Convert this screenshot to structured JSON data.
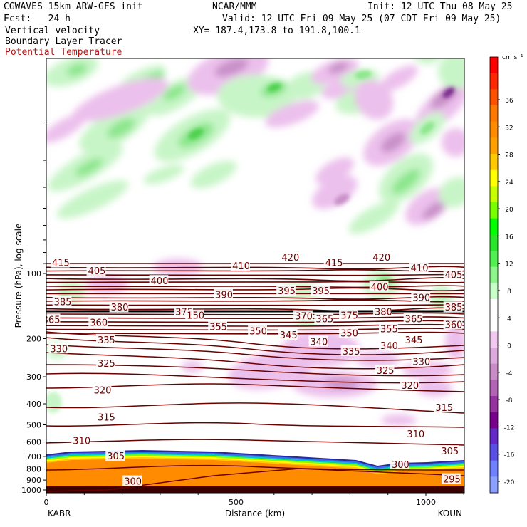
{
  "header": {
    "line1_left": "CGWAVES 15km ARW-GFS init",
    "line1_center": "NCAR/MMM",
    "line1_right": "Init: 12 UTC Thu 08 May 25",
    "line2_left": "Fcst:   24 h",
    "line2_right": "Valid: 12 UTC Fri 09 May 25 (07 CDT Fri 09 May 25)",
    "line3_left": "Vertical velocity",
    "line3_right": "XY= 187.4,173.8 to 191.8,100.1",
    "line4_left": "Boundary Layer Tracer",
    "line5_left": "Potential Temperature"
  },
  "colors": {
    "theta_contour": "#6b0000",
    "header_red": "#b01818",
    "tropopause_line": "#000000"
  },
  "chart_data": {
    "type": "cross-section",
    "xlabel": "Distance (km)",
    "ylabel": "Pressure (hPa), log scale",
    "xlim": [
      0,
      1110
    ],
    "ylim_hPa": [
      1050,
      10
    ],
    "x_ticks": [
      "0",
      "500",
      "1000"
    ],
    "y_ticks": [
      "100",
      "200",
      "300",
      "400",
      "500",
      "600",
      "700",
      "800",
      "900",
      "1000"
    ],
    "start_label": "KABR",
    "end_label": "KOUN",
    "colorbar": {
      "unit": "cm s⁻¹",
      "tick_labels": [
        "36",
        "32",
        "28",
        "24",
        "20",
        "16",
        "12",
        "8",
        "4",
        "0",
        "-4",
        "-8",
        "-12",
        "-16",
        "-20"
      ],
      "colors": [
        "#ff0000",
        "#ff2800",
        "#ff5000",
        "#ff7800",
        "#ff8c00",
        "#ffa000",
        "#ffc800",
        "#ffff00",
        "#c8ff00",
        "#78ff00",
        "#00ff00",
        "#28e628",
        "#50f050",
        "#8cf58c",
        "#c8ffc8",
        "#ffffff",
        "#ffffff",
        "#f0c8f0",
        "#dcaadc",
        "#c88cc8",
        "#b464b4",
        "#9632a0",
        "#78008c",
        "#6428c8",
        "#5a50e6",
        "#6e82ff",
        "#8ca0ff"
      ]
    },
    "theta_labels": [
      {
        "v": "415",
        "x": 15,
        "p": 89
      },
      {
        "v": "405",
        "x": 110,
        "p": 97
      },
      {
        "v": "400",
        "x": 275,
        "p": 108
      },
      {
        "v": "410",
        "x": 490,
        "p": 92
      },
      {
        "v": "420",
        "x": 620,
        "p": 84
      },
      {
        "v": "415",
        "x": 735,
        "p": 89
      },
      {
        "v": "420",
        "x": 860,
        "p": 84
      },
      {
        "v": "410",
        "x": 960,
        "p": 94
      },
      {
        "v": "405",
        "x": 1050,
        "p": 101
      },
      {
        "v": "385",
        "x": 20,
        "p": 135
      },
      {
        "v": "380",
        "x": 170,
        "p": 143
      },
      {
        "v": "375",
        "x": 340,
        "p": 150
      },
      {
        "v": "390",
        "x": 445,
        "p": 125
      },
      {
        "v": "395",
        "x": 610,
        "p": 120
      },
      {
        "v": "395",
        "x": 700,
        "p": 120
      },
      {
        "v": "400",
        "x": 855,
        "p": 115
      },
      {
        "v": "390",
        "x": 965,
        "p": 129
      },
      {
        "v": "385",
        "x": 1050,
        "p": 143
      },
      {
        "v": "380",
        "x": 865,
        "p": 150
      },
      {
        "v": "375",
        "x": 775,
        "p": 156
      },
      {
        "v": "370",
        "x": 655,
        "p": 157
      },
      {
        "v": "365",
        "x": 710,
        "p": 162
      },
      {
        "v": "150",
        "x": 370,
        "p": 156
      },
      {
        "v": "365",
        "x": -10,
        "p": 163
      },
      {
        "v": "360",
        "x": 115,
        "p": 168
      },
      {
        "v": "355",
        "x": 430,
        "p": 176
      },
      {
        "v": "350",
        "x": 535,
        "p": 184
      },
      {
        "v": "345",
        "x": 615,
        "p": 192
      },
      {
        "v": "340",
        "x": 695,
        "p": 206
      },
      {
        "v": "335",
        "x": 780,
        "p": 228
      },
      {
        "v": "350",
        "x": 775,
        "p": 188
      },
      {
        "v": "355",
        "x": 880,
        "p": 180
      },
      {
        "v": "340",
        "x": 880,
        "p": 215
      },
      {
        "v": "345",
        "x": 945,
        "p": 202
      },
      {
        "v": "365",
        "x": 945,
        "p": 162
      },
      {
        "v": "360",
        "x": 1050,
        "p": 172
      },
      {
        "v": "335",
        "x": 135,
        "p": 202
      },
      {
        "v": "330",
        "x": 10,
        "p": 222
      },
      {
        "v": "325",
        "x": 135,
        "p": 260
      },
      {
        "v": "330",
        "x": 965,
        "p": 255
      },
      {
        "v": "325",
        "x": 870,
        "p": 280
      },
      {
        "v": "320",
        "x": 125,
        "p": 345
      },
      {
        "v": "320",
        "x": 935,
        "p": 328
      },
      {
        "v": "315",
        "x": 135,
        "p": 460
      },
      {
        "v": "315",
        "x": 1025,
        "p": 415
      },
      {
        "v": "310",
        "x": 70,
        "p": 590
      },
      {
        "v": "310",
        "x": 950,
        "p": 550
      },
      {
        "v": "305",
        "x": 160,
        "p": 695
      },
      {
        "v": "305",
        "x": 1040,
        "p": 660
      },
      {
        "v": "300",
        "x": 205,
        "p": 910
      },
      {
        "v": "300",
        "x": 910,
        "p": 760
      },
      {
        "v": "295",
        "x": 1045,
        "p": 890
      }
    ]
  }
}
